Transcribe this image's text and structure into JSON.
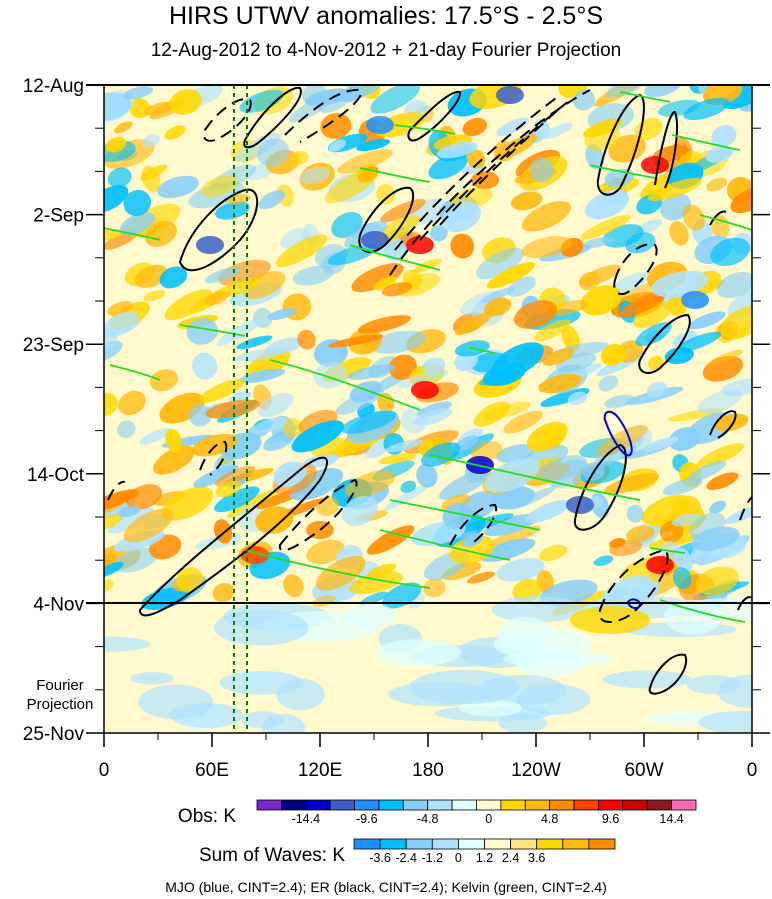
{
  "chart_data": {
    "type": "heatmap",
    "title": "HIRS UTWV anomalies: 17.5°S - 2.5°S",
    "subtitle": "12-Aug-2012 to 4-Nov-2012 + 21-day Fourier Projection",
    "x_ticks": [
      "0",
      "60E",
      "120E",
      "180",
      "120W",
      "60W",
      "0"
    ],
    "y_ticks": [
      "12-Aug",
      "2-Sep",
      "23-Sep",
      "14-Oct",
      "4-Nov",
      "25-Nov"
    ],
    "projection_label": [
      "Fourier",
      "Projection"
    ],
    "obs_colorbar": {
      "label": "Obs: K",
      "tick_labels": [
        "-14.4",
        "-9.6",
        "-4.8",
        "0",
        "4.8",
        "9.6",
        "14.4"
      ],
      "colors": [
        "#7d26cd",
        "#000080",
        "#0000cd",
        "#3a5fcd",
        "#1e90ff",
        "#00bfff",
        "#87cefa",
        "#b0e2ff",
        "#e0ffff",
        "#fffacd",
        "#ffd700",
        "#ffb90f",
        "#ff8c00",
        "#ff4500",
        "#ff0000",
        "#cd0000",
        "#8b1a1a",
        "#ff69b4"
      ]
    },
    "waves_colorbar": {
      "label": "Sum of Waves: K",
      "tick_labels": [
        "-3.6",
        "-2.4",
        "-1.2",
        "0",
        "1.2",
        "2.4",
        "3.6"
      ],
      "colors": [
        "#1e90ff",
        "#00bfff",
        "#87cefa",
        "#b0e2ff",
        "#e0ffff",
        "#fffacd",
        "#ffe680",
        "#ffd700",
        "#ffb90f",
        "#ff8c00"
      ]
    },
    "footer": "MJO (blue, CINT=2.4); ER (black, CINT=2.4); Kelvin (green, CINT=2.4)",
    "lines": {
      "mjo": "#0000cd",
      "er": "#000000",
      "kelvin": "#00d000",
      "marker": "#008000"
    }
  }
}
